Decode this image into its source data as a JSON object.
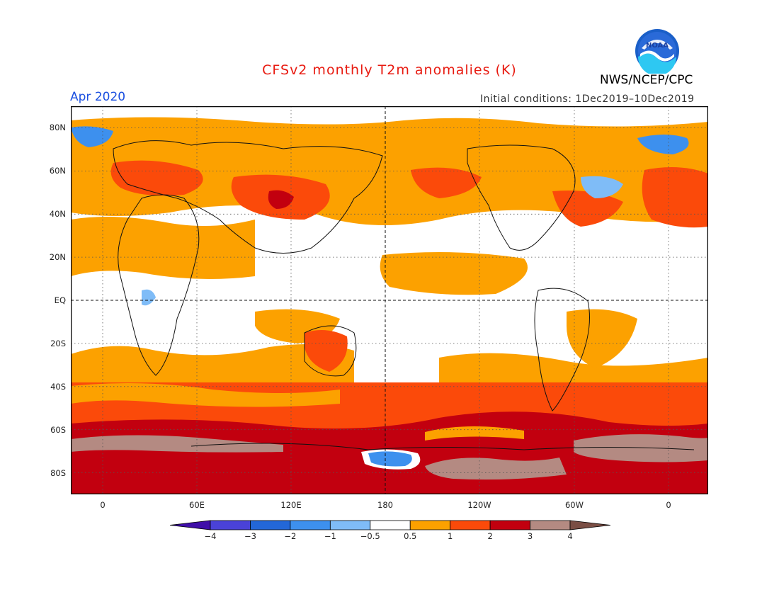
{
  "title": "CFSv2 monthly T2m anomalies (K)",
  "period": "Apr 2020",
  "org": "NWS/NCEP/CPC",
  "logo_text": "NOAA",
  "init_conditions": "Initial conditions: 1Dec2019–10Dec2019",
  "colors": {
    "title": "#e81a10",
    "period": "#1a4fe0",
    "ocean_bg": "#ffffff",
    "coast": "#111111"
  },
  "lat_labels": [
    "80N",
    "60N",
    "40N",
    "20N",
    "EQ",
    "20S",
    "40S",
    "60S",
    "80S"
  ],
  "lon_labels": [
    "0",
    "60E",
    "120E",
    "180",
    "120W",
    "60W",
    "0"
  ],
  "colorbar": {
    "labels": [
      "-4",
      "-3",
      "-2",
      "-1",
      "-0.5",
      "0.5",
      "1",
      "2",
      "3",
      "4"
    ],
    "colors": [
      "#3f0fa8",
      "#4a42d8",
      "#2367d8",
      "#3d90ee",
      "#7fbcf7",
      "#ffffff",
      "#fca100",
      "#fb4a0a",
      "#c2000f",
      "#b48a82",
      "#7a4e44"
    ]
  }
}
